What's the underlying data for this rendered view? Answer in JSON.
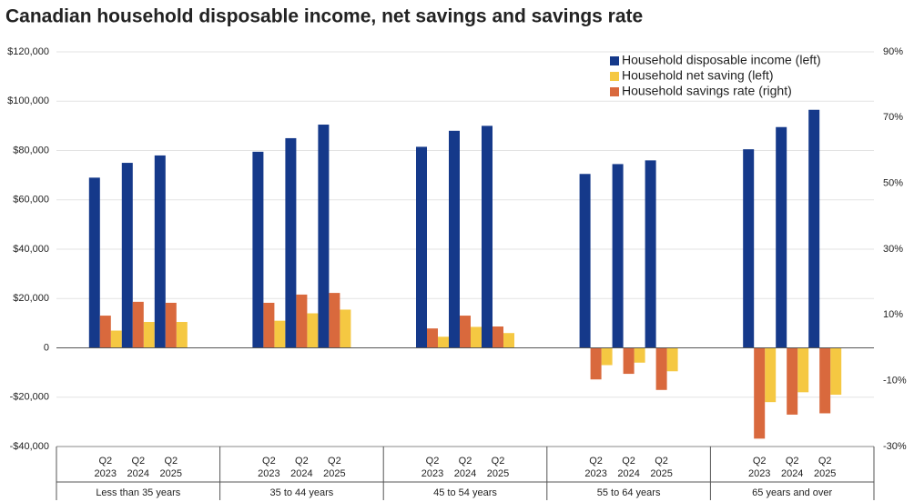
{
  "chart_data": {
    "type": "bar",
    "title": "Canadian household disposable income, net savings and savings rate",
    "groups": [
      "Less than 35 years",
      "35 to 44 years",
      "45 to 54 years",
      "55 to 64 years",
      "65 years and over"
    ],
    "categories": [
      "Q2 2023",
      "Q2 2024",
      "Q2 2025",
      "Q2 2023",
      "Q2 2024",
      "Q2 2025",
      "Q2 2023",
      "Q2 2024",
      "Q2 2025",
      "Q2 2023",
      "Q2 2024",
      "Q2 2025",
      "Q2 2023",
      "Q2 2024",
      "Q2 2025"
    ],
    "series": [
      {
        "name": "Household disposable income (left)",
        "color": "#15398a",
        "values": [
          69000,
          75000,
          78000,
          79500,
          85000,
          90500,
          81500,
          88000,
          90000,
          70500,
          74500,
          76000,
          80500,
          89500,
          96500
        ]
      },
      {
        "name": "Household net saving (left)",
        "color": "#f5c842",
        "values": [
          7000,
          10500,
          10500,
          11000,
          14000,
          15500,
          4500,
          8500,
          6000,
          -7000,
          -6000,
          -9500,
          -22000,
          -18000,
          -19000
        ]
      },
      {
        "name": "Household savings rate (right)",
        "color": "#d9693d",
        "axis": "y2",
        "values": [
          9.8,
          14,
          13.7,
          13.7,
          16.2,
          16.7,
          5.9,
          9.8,
          6.5,
          -9.6,
          -7.9,
          -12.8,
          -27.6,
          -20.3,
          -19.9
        ]
      }
    ],
    "ylim": [
      -40000,
      120000
    ],
    "yticks": [
      {
        "value": -40000,
        "label": "-$40,000"
      },
      {
        "value": -20000,
        "label": "-$20,000"
      },
      {
        "value": 0,
        "label": "0"
      },
      {
        "value": 20000,
        "label": "$20,000"
      },
      {
        "value": 40000,
        "label": "$40,000"
      },
      {
        "value": 60000,
        "label": "$60,000"
      },
      {
        "value": 80000,
        "label": "$80,000"
      },
      {
        "value": 100000,
        "label": "$100,000"
      },
      {
        "value": 120000,
        "label": "$120,000"
      }
    ],
    "y2lim": [
      -30,
      90
    ],
    "y2ticks": [
      {
        "value": -30,
        "label": "-30%"
      },
      {
        "value": -10,
        "label": "-10%"
      },
      {
        "value": 10,
        "label": "10%"
      },
      {
        "value": 30,
        "label": "30%"
      },
      {
        "value": 50,
        "label": "50%"
      },
      {
        "value": 70,
        "label": "70%"
      },
      {
        "value": 90,
        "label": "90%"
      }
    ],
    "grid": true,
    "legend": "top-right"
  }
}
